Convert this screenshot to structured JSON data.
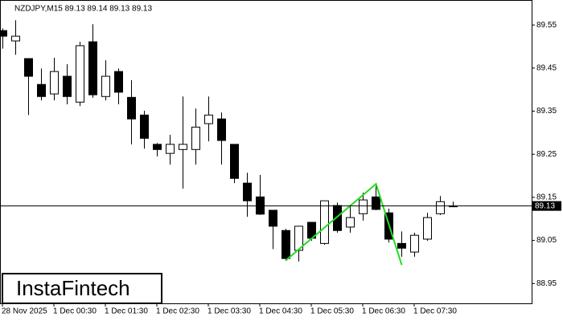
{
  "chart_data": {
    "type": "candlestick",
    "title": "NZDJPY,M15  89.13 89.14 89.13 89.13",
    "categories": [
      "28 Nov 2025",
      null,
      null,
      null,
      "1 Dec 00:30",
      null,
      null,
      null,
      "1 Dec 01:30",
      null,
      null,
      null,
      "1 Dec 02:30",
      null,
      null,
      null,
      "1 Dec 03:30",
      null,
      null,
      null,
      "1 Dec 04:30",
      null,
      null,
      null,
      "1 Dec 05:30",
      null,
      null,
      null,
      "1 Dec 06:30",
      null,
      null,
      null,
      "1 Dec 07:30",
      null,
      null,
      null
    ],
    "open": [
      89.537,
      89.513,
      89.472,
      89.412,
      89.39,
      89.431,
      89.371,
      89.511,
      89.384,
      89.442,
      89.382,
      89.341,
      89.273,
      89.252,
      89.261,
      89.261,
      89.321,
      89.332,
      89.273,
      89.183,
      89.151,
      89.12,
      89.073,
      89.027,
      89.092,
      89.043,
      89.131,
      89.081,
      89.112,
      89.151,
      89.114,
      89.043,
      89.023,
      89.053,
      89.112,
      89.13
    ],
    "high": [
      89.542,
      89.561,
      89.472,
      89.449,
      89.474,
      89.459,
      89.511,
      89.552,
      89.468,
      89.449,
      89.422,
      89.351,
      89.276,
      89.295,
      89.384,
      89.356,
      89.384,
      89.347,
      89.273,
      89.207,
      89.202,
      89.12,
      89.077,
      89.083,
      89.092,
      89.142,
      89.138,
      89.133,
      89.161,
      89.183,
      89.124,
      89.071,
      89.068,
      89.114,
      89.153,
      89.14
    ],
    "low": [
      89.495,
      89.481,
      89.341,
      89.375,
      89.375,
      89.366,
      89.362,
      89.381,
      89.375,
      89.366,
      89.273,
      89.263,
      89.245,
      89.226,
      89.17,
      89.226,
      89.28,
      89.226,
      89.183,
      89.105,
      89.109,
      89.03,
      89.003,
      89.001,
      89.049,
      89.04,
      89.068,
      89.068,
      89.096,
      89.12,
      89.045,
      89.012,
      89.012,
      89.049,
      89.109,
      89.13
    ],
    "close": [
      89.524,
      89.524,
      89.431,
      89.384,
      89.442,
      89.384,
      89.502,
      89.388,
      89.431,
      89.394,
      89.332,
      89.287,
      89.261,
      89.273,
      89.273,
      89.313,
      89.341,
      89.282,
      89.194,
      89.142,
      89.111,
      89.083,
      89.008,
      89.083,
      89.055,
      89.142,
      89.073,
      89.103,
      89.144,
      89.122,
      89.053,
      89.032,
      89.062,
      89.103,
      89.14,
      89.13
    ],
    "up_color": "#ffffff",
    "down_color": "#000000",
    "ylim": [
      88.904,
      89.608
    ],
    "yticks": [
      88.95,
      89.05,
      89.15,
      89.25,
      89.35,
      89.45,
      89.55
    ],
    "last_price": 89.13,
    "pattern": {
      "color": "#22dd22",
      "x": [
        22,
        29,
        31
      ],
      "values": [
        89.004,
        89.181,
        88.993
      ]
    }
  },
  "watermark": "InstaFintech"
}
